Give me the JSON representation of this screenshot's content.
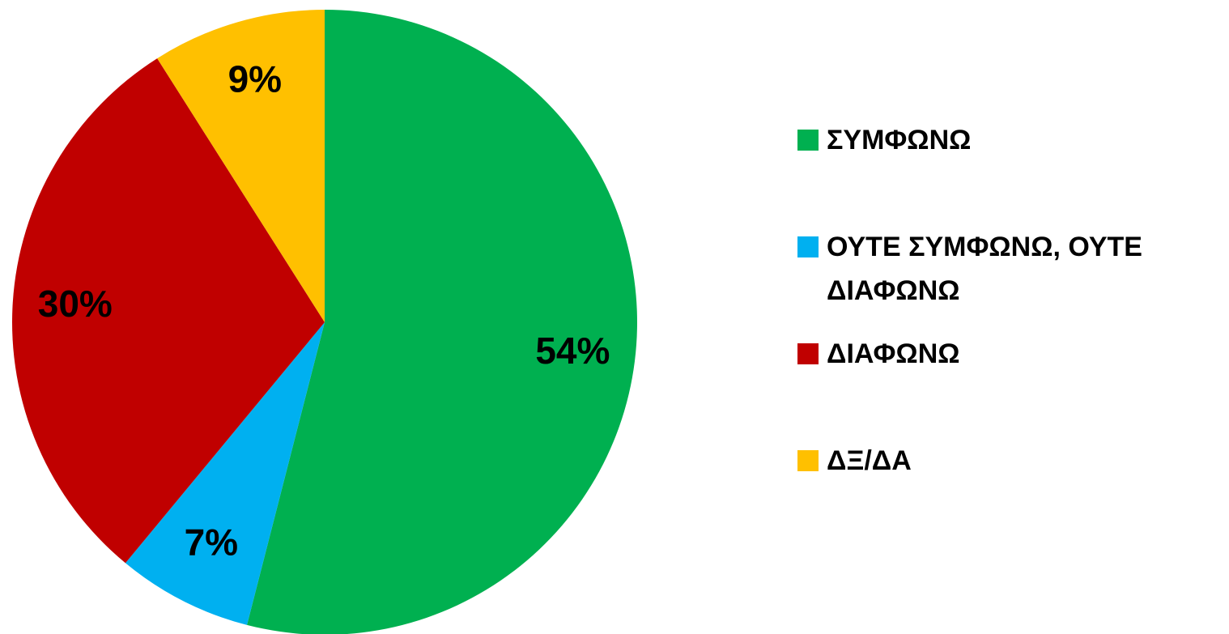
{
  "chart_data": {
    "type": "pie",
    "categories": [
      "ΣΥΜΦΩΝΩ",
      "ΟΥΤΕ ΣΥΜΦΩΝΩ, ΟΥΤΕ ΔΙΑΦΩΝΩ",
      "ΔΙΑΦΩΝΩ",
      "ΔΞ/ΔΑ"
    ],
    "values": [
      54,
      7,
      30,
      9
    ],
    "value_labels": [
      "54%",
      "7%",
      "30%",
      "9%"
    ],
    "colors": [
      "#00b050",
      "#00b0f0",
      "#c00000",
      "#ffc000"
    ],
    "legend": "right"
  }
}
